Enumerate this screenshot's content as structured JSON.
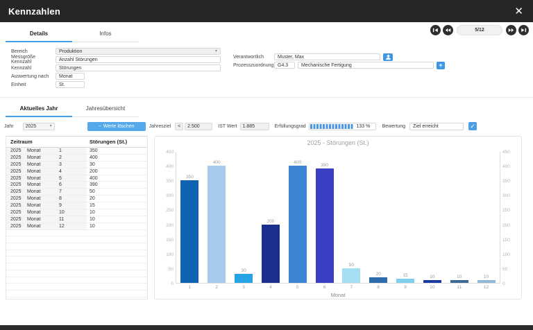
{
  "window": {
    "title": "Kennzahlen"
  },
  "icons": {
    "close": "✕",
    "chevron_down": "▾",
    "minus": "−",
    "plus": "+",
    "check": "✓"
  },
  "pager": {
    "position": "5/12"
  },
  "tabs_top": [
    {
      "label": "Details"
    },
    {
      "label": "Infos"
    }
  ],
  "form": {
    "left": [
      {
        "label": "Bereich",
        "value": "Produktion"
      },
      {
        "label": "Messgröße Kennzahl",
        "value": "Anzahl Störungen"
      },
      {
        "label": "Kennzahl",
        "value": "Störungen"
      },
      {
        "label": "Auswertung nach",
        "value": "Monat"
      },
      {
        "label": "Einheit",
        "value": "St."
      }
    ],
    "right": {
      "verantwortlich_label": "Verantwortlich",
      "verantwortlich_value": "Muster, Max",
      "prozess_label": "Prozesszuordnung",
      "prozess_code": "G4.3",
      "prozess_value": "Mechanische Fertigung"
    }
  },
  "tabs_year": [
    {
      "label": "Aktuelles Jahr"
    },
    {
      "label": "Jahresübersicht"
    }
  ],
  "controls": {
    "jahr_label": "Jahr",
    "jahr_value": "2025",
    "delete_button": "Werte löschen",
    "jahresziel_label": "Jahresziel",
    "jahresziel_operator": "<",
    "jahresziel_value": "2.500",
    "ist_label": "IST Wert",
    "ist_value": "1.885",
    "erfuellungsgrad_label": "Erfüllungsgrad",
    "erfuellungsgrad_value": "133 %",
    "erfuellungsgrad_fill_pct": 66,
    "bewertung_label": "Bewertung",
    "bewertung_value": "Ziel erreicht",
    "bewertung_checked": true
  },
  "table": {
    "header_zeitraum": "Zeitraum",
    "header_value": "Störungen (St.)",
    "rows": [
      [
        "2025",
        "Monat",
        "1",
        "350"
      ],
      [
        "2025",
        "Monat",
        "2",
        "400"
      ],
      [
        "2025",
        "Monat",
        "3",
        "30"
      ],
      [
        "2025",
        "Monat",
        "4",
        "200"
      ],
      [
        "2025",
        "Monat",
        "5",
        "400"
      ],
      [
        "2025",
        "Monat",
        "6",
        "390"
      ],
      [
        "2025",
        "Monat",
        "7",
        "50"
      ],
      [
        "2025",
        "Monat",
        "8",
        "20"
      ],
      [
        "2025",
        "Monat",
        "9",
        "15"
      ],
      [
        "2025",
        "Monat",
        "10",
        "10"
      ],
      [
        "2025",
        "Monat",
        "11",
        "10"
      ],
      [
        "2025",
        "Monat",
        "12",
        "10"
      ]
    ],
    "empty_row_count": 10
  },
  "chart_data": {
    "type": "bar",
    "title": "2025 - Störungen (St.)",
    "xlabel": "Monat",
    "categories": [
      "1",
      "2",
      "3",
      "4",
      "5",
      "6",
      "7",
      "8",
      "9",
      "10",
      "11",
      "12"
    ],
    "values": [
      350,
      400,
      30,
      200,
      400,
      390,
      50,
      20,
      15,
      10,
      10,
      10
    ],
    "bar_colors": [
      "#1063b1",
      "#a7cbec",
      "#25a4e4",
      "#1a2f8f",
      "#3c85d4",
      "#3a3ec2",
      "#a5ddf3",
      "#2d6dad",
      "#7fd0ef",
      "#1b3ba3",
      "#3e6b96",
      "#93b7d6"
    ],
    "ylim": [
      0,
      450
    ],
    "yticks": [
      0,
      50,
      100,
      150,
      200,
      250,
      300,
      350,
      400,
      450
    ],
    "grid": false,
    "legend": "none",
    "dual_y_axis": true
  }
}
